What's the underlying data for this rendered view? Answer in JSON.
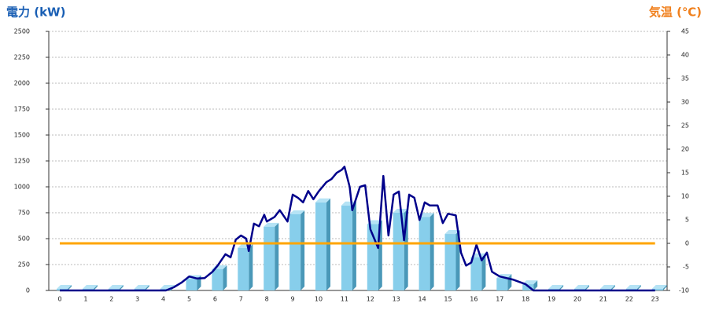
{
  "chart_data": {
    "type": "combo",
    "y_title": "電力 (kW)",
    "y2_title": "気温 (℃)",
    "categories": [
      "0",
      "1",
      "2",
      "3",
      "4",
      "5",
      "6",
      "7",
      "8",
      "9",
      "10",
      "11",
      "12",
      "13",
      "14",
      "15",
      "16",
      "17",
      "18",
      "19",
      "20",
      "21",
      "22",
      "23"
    ],
    "ylim": [
      0,
      2500
    ],
    "yticks": [
      0,
      250,
      500,
      750,
      1000,
      1250,
      1500,
      1750,
      2000,
      2250,
      2500
    ],
    "y2lim": [
      -10,
      45
    ],
    "y2ticks": [
      -10,
      -5,
      0,
      5,
      10,
      15,
      20,
      25,
      30,
      35,
      40,
      45
    ],
    "grid": true,
    "series": [
      {
        "type": "bar",
        "color": "#87ceeb",
        "values": [
          15,
          15,
          15,
          15,
          15,
          110,
          205,
          410,
          615,
          735,
          850,
          820,
          640,
          750,
          710,
          545,
          320,
          120,
          60,
          15,
          15,
          15,
          15,
          15
        ]
      },
      {
        "type": "line",
        "color": "#00008b",
        "x": [
          0,
          4.1,
          4.4,
          4.7,
          5,
          5.3,
          5.6,
          5.9,
          6.1,
          6.4,
          6.6,
          6.8,
          7,
          7.2,
          7.3,
          7.5,
          7.7,
          7.9,
          8,
          8.3,
          8.5,
          8.8,
          9,
          9.2,
          9.4,
          9.6,
          9.8,
          10,
          10.3,
          10.5,
          10.7,
          10.9,
          11,
          11.2,
          11.3,
          11.6,
          11.8,
          12,
          12.3,
          12.5,
          12.7,
          12.9,
          13.1,
          13.3,
          13.5,
          13.7,
          13.9,
          14.1,
          14.3,
          14.6,
          14.8,
          15,
          15.3,
          15.5,
          15.7,
          15.9,
          16.1,
          16.3,
          16.5,
          16.7,
          17,
          17.5,
          18,
          18.3,
          23
        ],
        "values": [
          0,
          0,
          30,
          75,
          135,
          115,
          120,
          180,
          240,
          350,
          320,
          490,
          530,
          500,
          380,
          645,
          620,
          730,
          665,
          710,
          775,
          665,
          925,
          895,
          850,
          960,
          880,
          955,
          1045,
          1075,
          1135,
          1165,
          1195,
          1000,
          775,
          1000,
          1015,
          590,
          410,
          1105,
          530,
          925,
          955,
          485,
          925,
          895,
          680,
          850,
          820,
          820,
          650,
          740,
          725,
          365,
          240,
          270,
          440,
          290,
          365,
          180,
          135,
          105,
          60,
          0,
          0
        ]
      },
      {
        "type": "line",
        "axis": "y2",
        "color": "#ffa500",
        "values": [
          0,
          0,
          0,
          0,
          0,
          0,
          0,
          0,
          0,
          0,
          0,
          0,
          0,
          0,
          0,
          0,
          0,
          0,
          0,
          0,
          0,
          0,
          0,
          0
        ]
      }
    ]
  }
}
